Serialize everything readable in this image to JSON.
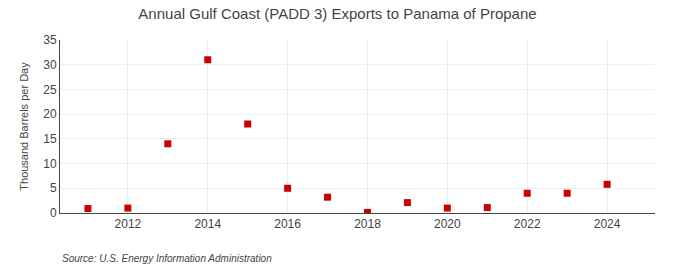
{
  "chart_data": {
    "type": "scatter",
    "title": "Annual Gulf Coast (PADD 3) Exports to Panama of Propane",
    "ylabel": "Thousand Barrels per Day",
    "annotations": [
      "Source: U.S. Energy Information Administration"
    ],
    "x": [
      2011,
      2012,
      2013,
      2014,
      2015,
      2016,
      2017,
      2018,
      2019,
      2020,
      2021,
      2022,
      2023,
      2024
    ],
    "values": [
      0.9,
      1.0,
      14.0,
      31.0,
      18.0,
      5.0,
      3.2,
      0.1,
      2.1,
      1.0,
      1.1,
      4.0,
      4.0,
      5.8
    ],
    "color": "#cc0000",
    "marker": "square",
    "xlim": [
      2010.3,
      2025.2
    ],
    "ylim": [
      0,
      35
    ],
    "xticks": [
      2012,
      2014,
      2016,
      2018,
      2020,
      2022,
      2024
    ],
    "yticks": [
      0,
      5,
      10,
      15,
      20,
      25,
      30,
      35
    ],
    "grid": true
  }
}
